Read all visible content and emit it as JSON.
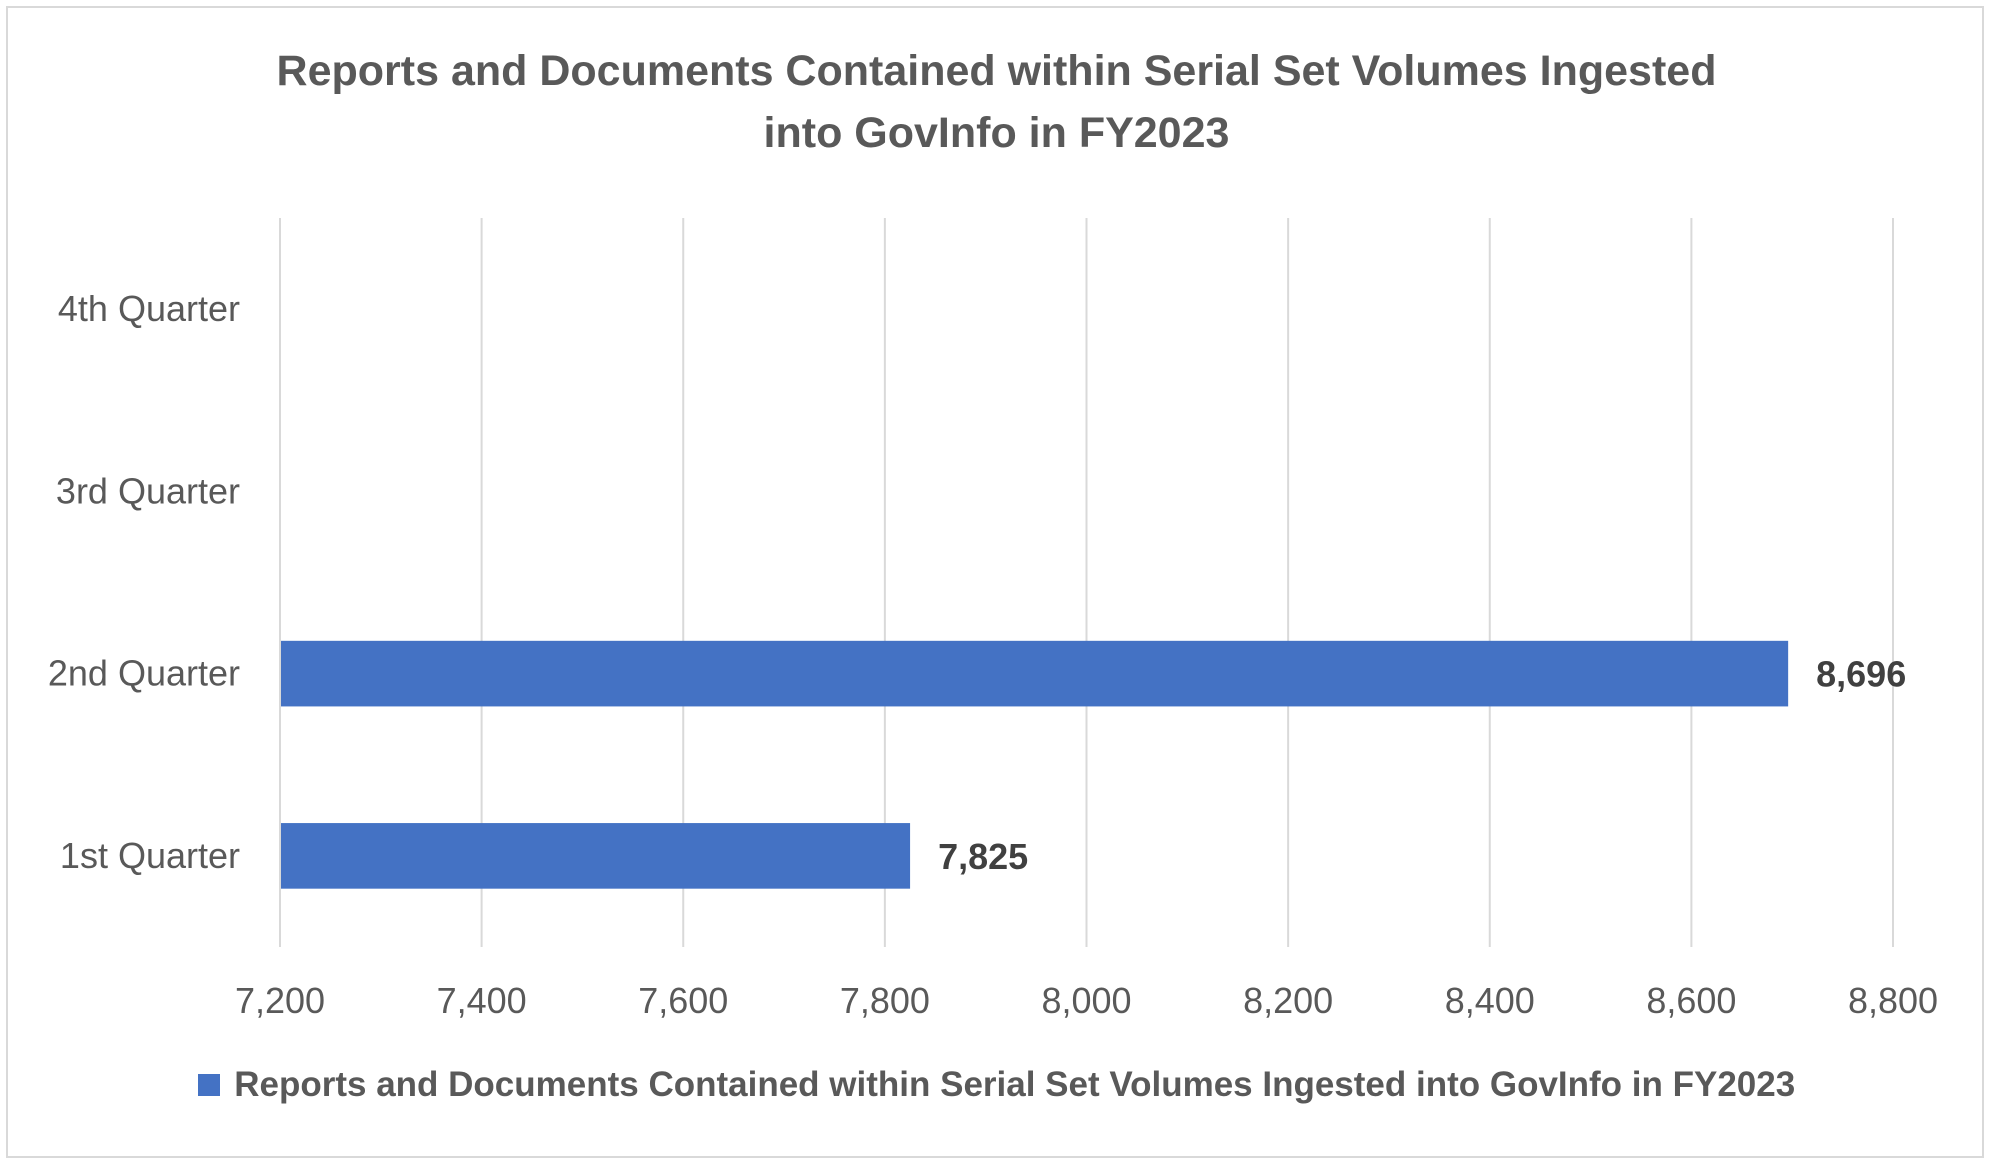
{
  "chart_data": {
    "type": "bar",
    "orientation": "horizontal",
    "title": "Reports and Documents Contained within Serial Set Volumes Ingested into GovInfo in FY2023",
    "title_lines": [
      "Reports and Documents Contained within Serial Set Volumes Ingested",
      "into GovInfo in FY2023"
    ],
    "categories": [
      "4th Quarter",
      "3rd Quarter",
      "2nd Quarter",
      "1st Quarter"
    ],
    "series": [
      {
        "name": "Reports and Documents Contained within Serial Set Volumes Ingested into GovInfo in FY2023",
        "values": [
          null,
          null,
          8696,
          7825
        ],
        "data_labels": [
          "",
          "",
          "8,696",
          "7,825"
        ],
        "color": "#4472c4"
      }
    ],
    "xlim": [
      7200,
      8800
    ],
    "x_ticks": [
      7200,
      7400,
      7600,
      7800,
      8000,
      8200,
      8400,
      8600,
      8800
    ],
    "x_tick_labels": [
      "7,200",
      "7,400",
      "7,600",
      "7,800",
      "8,000",
      "8,200",
      "8,400",
      "8,600",
      "8,800"
    ],
    "xlabel": "",
    "ylabel": "",
    "grid": "vertical",
    "legend": "bottom",
    "colors": {
      "bar": "#4472c4",
      "grid": "#d9d9d9",
      "text": "#595959",
      "data_label": "#404040"
    }
  }
}
